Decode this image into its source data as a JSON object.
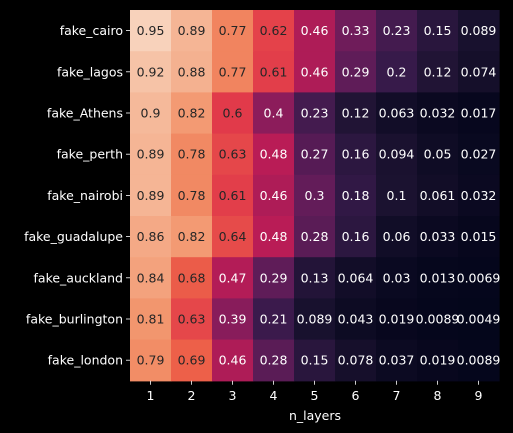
{
  "chart_data": {
    "type": "heatmap",
    "title": "",
    "xlabel": "n_layers",
    "ylabel": "",
    "x": [
      "1",
      "2",
      "3",
      "4",
      "5",
      "6",
      "7",
      "8",
      "9"
    ],
    "y": [
      "fake_cairo",
      "fake_lagos",
      "fake_Athens",
      "fake_perth",
      "fake_nairobi",
      "fake_guadalupe",
      "fake_auckland",
      "fake_burlington",
      "fake_london"
    ],
    "values": [
      [
        0.95,
        0.89,
        0.77,
        0.62,
        0.46,
        0.33,
        0.23,
        0.15,
        0.089
      ],
      [
        0.92,
        0.88,
        0.77,
        0.61,
        0.46,
        0.29,
        0.2,
        0.12,
        0.074
      ],
      [
        0.9,
        0.82,
        0.6,
        0.4,
        0.23,
        0.12,
        0.063,
        0.032,
        0.017
      ],
      [
        0.89,
        0.78,
        0.63,
        0.48,
        0.27,
        0.16,
        0.094,
        0.05,
        0.027
      ],
      [
        0.89,
        0.78,
        0.61,
        0.46,
        0.3,
        0.18,
        0.1,
        0.061,
        0.032
      ],
      [
        0.86,
        0.82,
        0.64,
        0.48,
        0.28,
        0.16,
        0.06,
        0.033,
        0.015
      ],
      [
        0.84,
        0.68,
        0.47,
        0.29,
        0.13,
        0.064,
        0.03,
        0.013,
        0.0069
      ],
      [
        0.81,
        0.63,
        0.39,
        0.21,
        0.089,
        0.043,
        0.019,
        0.0089,
        0.0049
      ],
      [
        0.79,
        0.69,
        0.46,
        0.28,
        0.15,
        0.078,
        0.037,
        0.019,
        0.0089
      ]
    ],
    "labels": [
      [
        "0.95",
        "0.89",
        "0.77",
        "0.62",
        "0.46",
        "0.33",
        "0.23",
        "0.15",
        "0.089"
      ],
      [
        "0.92",
        "0.88",
        "0.77",
        "0.61",
        "0.46",
        "0.29",
        "0.2",
        "0.12",
        "0.074"
      ],
      [
        "0.9",
        "0.82",
        "0.6",
        "0.4",
        "0.23",
        "0.12",
        "0.063",
        "0.032",
        "0.017"
      ],
      [
        "0.89",
        "0.78",
        "0.63",
        "0.48",
        "0.27",
        "0.16",
        "0.094",
        "0.05",
        "0.027"
      ],
      [
        "0.89",
        "0.78",
        "0.61",
        "0.46",
        "0.3",
        "0.18",
        "0.1",
        "0.061",
        "0.032"
      ],
      [
        "0.86",
        "0.82",
        "0.64",
        "0.48",
        "0.28",
        "0.16",
        "0.06",
        "0.033",
        "0.015"
      ],
      [
        "0.84",
        "0.68",
        "0.47",
        "0.29",
        "0.13",
        "0.064",
        "0.03",
        "0.013",
        "0.0069"
      ],
      [
        "0.81",
        "0.63",
        "0.39",
        "0.21",
        "0.089",
        "0.043",
        "0.019",
        "0.0089",
        "0.0049"
      ],
      [
        "0.79",
        "0.69",
        "0.46",
        "0.28",
        "0.15",
        "0.078",
        "0.037",
        "0.019",
        "0.0089"
      ]
    ],
    "colormap": "rocket",
    "background_color": "#000000",
    "text_color": "#ffffff",
    "annotation_dark_text_color": "#262626",
    "annotation_light_text_color": "#ffffff",
    "annotation_threshold": 0.5,
    "grid": false,
    "legend": "none"
  }
}
